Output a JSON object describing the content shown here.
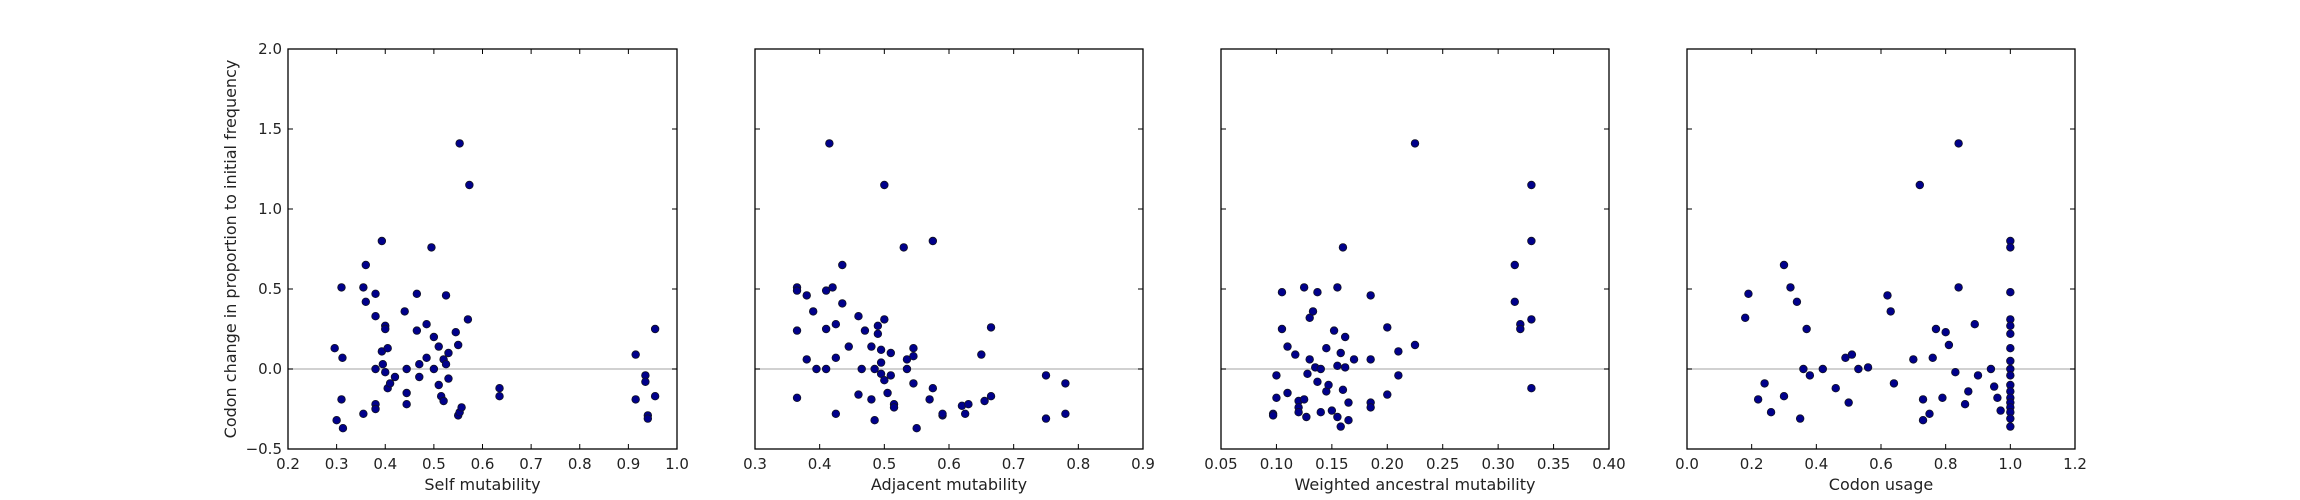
{
  "colors": {
    "marker": "#00008b",
    "zero_line": "#c2c2c2",
    "frame": "#000000",
    "background": "#ffffff"
  },
  "chart_data": [
    {
      "type": "scatter",
      "xlabel": "Self mutability",
      "ylabel": "Codon change in proportion to initial frequency",
      "xlim": [
        0.2,
        1.0
      ],
      "ylim": [
        -0.5,
        2.0
      ],
      "xticks": [
        "0.2",
        "0.3",
        "0.4",
        "0.5",
        "0.6",
        "0.7",
        "0.8",
        "0.9",
        "1.0"
      ],
      "yticks": [
        "−0.5",
        "0.0",
        "0.5",
        "1.0",
        "1.5",
        "2.0"
      ],
      "grid": false,
      "reference_line_y": 0.0,
      "points": [
        [
          0.296,
          0.13
        ],
        [
          0.31,
          0.51
        ],
        [
          0.312,
          0.07
        ],
        [
          0.31,
          -0.19
        ],
        [
          0.3,
          -0.32
        ],
        [
          0.313,
          -0.37
        ],
        [
          0.355,
          0.51
        ],
        [
          0.36,
          0.65
        ],
        [
          0.36,
          0.42
        ],
        [
          0.355,
          -0.28
        ],
        [
          0.38,
          0.47
        ],
        [
          0.38,
          0.33
        ],
        [
          0.38,
          0.0
        ],
        [
          0.38,
          -0.22
        ],
        [
          0.38,
          -0.25
        ],
        [
          0.393,
          0.8
        ],
        [
          0.393,
          0.11
        ],
        [
          0.395,
          0.03
        ],
        [
          0.4,
          0.27
        ],
        [
          0.4,
          0.25
        ],
        [
          0.4,
          -0.02
        ],
        [
          0.405,
          0.13
        ],
        [
          0.405,
          -0.12
        ],
        [
          0.41,
          -0.09
        ],
        [
          0.42,
          -0.05
        ],
        [
          0.44,
          0.36
        ],
        [
          0.444,
          0.0
        ],
        [
          0.444,
          -0.15
        ],
        [
          0.444,
          -0.22
        ],
        [
          0.465,
          0.47
        ],
        [
          0.465,
          0.24
        ],
        [
          0.47,
          0.03
        ],
        [
          0.47,
          -0.05
        ],
        [
          0.485,
          0.28
        ],
        [
          0.485,
          0.07
        ],
        [
          0.495,
          0.76
        ],
        [
          0.5,
          0.2
        ],
        [
          0.5,
          0.0
        ],
        [
          0.51,
          0.14
        ],
        [
          0.51,
          -0.1
        ],
        [
          0.515,
          -0.17
        ],
        [
          0.52,
          -0.2
        ],
        [
          0.52,
          0.06
        ],
        [
          0.525,
          0.46
        ],
        [
          0.525,
          0.03
        ],
        [
          0.53,
          -0.06
        ],
        [
          0.53,
          0.1
        ],
        [
          0.545,
          0.23
        ],
        [
          0.55,
          0.15
        ],
        [
          0.55,
          -0.29
        ],
        [
          0.553,
          -0.27
        ],
        [
          0.557,
          -0.24
        ],
        [
          0.553,
          1.41
        ],
        [
          0.573,
          1.15
        ],
        [
          0.57,
          0.31
        ],
        [
          0.635,
          -0.12
        ],
        [
          0.635,
          -0.17
        ],
        [
          0.915,
          0.09
        ],
        [
          0.915,
          -0.19
        ],
        [
          0.935,
          -0.04
        ],
        [
          0.935,
          -0.08
        ],
        [
          0.94,
          -0.29
        ],
        [
          0.94,
          -0.31
        ],
        [
          0.955,
          0.25
        ],
        [
          0.955,
          -0.17
        ]
      ]
    },
    {
      "type": "scatter",
      "xlabel": "Adjacent mutability",
      "ylabel": "",
      "xlim": [
        0.3,
        0.9
      ],
      "ylim": [
        -0.5,
        2.0
      ],
      "xticks": [
        "0.3",
        "0.4",
        "0.5",
        "0.6",
        "0.7",
        "0.8",
        "0.9"
      ],
      "yticks": [],
      "grid": false,
      "reference_line_y": 0.0,
      "points": [
        [
          0.365,
          0.51
        ],
        [
          0.365,
          0.49
        ],
        [
          0.365,
          0.24
        ],
        [
          0.365,
          -0.18
        ],
        [
          0.38,
          0.46
        ],
        [
          0.38,
          0.06
        ],
        [
          0.39,
          0.36
        ],
        [
          0.395,
          0.0
        ],
        [
          0.41,
          0.49
        ],
        [
          0.41,
          0.25
        ],
        [
          0.41,
          0.0
        ],
        [
          0.415,
          1.41
        ],
        [
          0.42,
          0.51
        ],
        [
          0.425,
          0.28
        ],
        [
          0.425,
          0.07
        ],
        [
          0.425,
          -0.28
        ],
        [
          0.435,
          0.65
        ],
        [
          0.435,
          0.41
        ],
        [
          0.445,
          0.14
        ],
        [
          0.46,
          0.33
        ],
        [
          0.46,
          -0.16
        ],
        [
          0.465,
          0.0
        ],
        [
          0.47,
          0.24
        ],
        [
          0.48,
          0.14
        ],
        [
          0.48,
          -0.19
        ],
        [
          0.485,
          0.0
        ],
        [
          0.485,
          -0.32
        ],
        [
          0.49,
          0.27
        ],
        [
          0.49,
          0.22
        ],
        [
          0.495,
          0.12
        ],
        [
          0.495,
          0.04
        ],
        [
          0.495,
          -0.03
        ],
        [
          0.5,
          1.15
        ],
        [
          0.5,
          0.31
        ],
        [
          0.5,
          -0.07
        ],
        [
          0.505,
          -0.15
        ],
        [
          0.51,
          0.1
        ],
        [
          0.51,
          -0.04
        ],
        [
          0.515,
          -0.22
        ],
        [
          0.515,
          -0.24
        ],
        [
          0.53,
          0.76
        ],
        [
          0.535,
          0.06
        ],
        [
          0.535,
          0.0
        ],
        [
          0.545,
          0.13
        ],
        [
          0.545,
          0.08
        ],
        [
          0.545,
          -0.09
        ],
        [
          0.55,
          -0.37
        ],
        [
          0.57,
          -0.19
        ],
        [
          0.575,
          0.8
        ],
        [
          0.575,
          -0.12
        ],
        [
          0.59,
          -0.29
        ],
        [
          0.59,
          -0.28
        ],
        [
          0.62,
          -0.23
        ],
        [
          0.625,
          -0.28
        ],
        [
          0.63,
          -0.22
        ],
        [
          0.65,
          0.09
        ],
        [
          0.655,
          -0.2
        ],
        [
          0.665,
          0.26
        ],
        [
          0.665,
          -0.17
        ],
        [
          0.75,
          -0.04
        ],
        [
          0.75,
          -0.31
        ],
        [
          0.78,
          -0.09
        ],
        [
          0.78,
          -0.28
        ]
      ]
    },
    {
      "type": "scatter",
      "xlabel": "Weighted ancestral mutability",
      "ylabel": "",
      "xlim": [
        0.05,
        0.4
      ],
      "ylim": [
        -0.5,
        2.0
      ],
      "xticks": [
        "0.05",
        "0.10",
        "0.15",
        "0.20",
        "0.25",
        "0.30",
        "0.35",
        "0.40"
      ],
      "yticks": [],
      "grid": false,
      "reference_line_y": 0.0,
      "points": [
        [
          0.097,
          -0.28
        ],
        [
          0.097,
          -0.29
        ],
        [
          0.1,
          -0.04
        ],
        [
          0.1,
          -0.18
        ],
        [
          0.105,
          0.48
        ],
        [
          0.105,
          0.25
        ],
        [
          0.11,
          0.14
        ],
        [
          0.11,
          -0.15
        ],
        [
          0.117,
          0.09
        ],
        [
          0.12,
          -0.2
        ],
        [
          0.12,
          -0.24
        ],
        [
          0.12,
          -0.27
        ],
        [
          0.125,
          0.51
        ],
        [
          0.125,
          -0.19
        ],
        [
          0.127,
          -0.3
        ],
        [
          0.128,
          -0.03
        ],
        [
          0.13,
          0.32
        ],
        [
          0.13,
          0.06
        ],
        [
          0.133,
          0.36
        ],
        [
          0.135,
          0.01
        ],
        [
          0.137,
          0.48
        ],
        [
          0.137,
          -0.08
        ],
        [
          0.14,
          0.0
        ],
        [
          0.14,
          -0.27
        ],
        [
          0.145,
          0.13
        ],
        [
          0.145,
          -0.14
        ],
        [
          0.147,
          -0.1
        ],
        [
          0.15,
          -0.26
        ],
        [
          0.152,
          0.24
        ],
        [
          0.155,
          0.51
        ],
        [
          0.155,
          0.02
        ],
        [
          0.155,
          -0.3
        ],
        [
          0.158,
          0.1
        ],
        [
          0.158,
          -0.36
        ],
        [
          0.16,
          0.76
        ],
        [
          0.16,
          -0.13
        ],
        [
          0.162,
          0.2
        ],
        [
          0.162,
          0.01
        ],
        [
          0.165,
          -0.21
        ],
        [
          0.165,
          -0.32
        ],
        [
          0.17,
          0.06
        ],
        [
          0.185,
          0.46
        ],
        [
          0.185,
          0.06
        ],
        [
          0.185,
          -0.21
        ],
        [
          0.185,
          -0.24
        ],
        [
          0.2,
          0.26
        ],
        [
          0.2,
          -0.16
        ],
        [
          0.21,
          0.11
        ],
        [
          0.21,
          -0.04
        ],
        [
          0.225,
          0.15
        ],
        [
          0.225,
          1.41
        ],
        [
          0.315,
          0.65
        ],
        [
          0.315,
          0.42
        ],
        [
          0.32,
          0.28
        ],
        [
          0.32,
          0.25
        ],
        [
          0.33,
          1.15
        ],
        [
          0.33,
          0.8
        ],
        [
          0.33,
          0.31
        ],
        [
          0.33,
          -0.12
        ]
      ]
    },
    {
      "type": "scatter",
      "xlabel": "Codon usage",
      "ylabel": "",
      "xlim": [
        0.0,
        1.2
      ],
      "ylim": [
        -0.5,
        2.0
      ],
      "xticks": [
        "0.0",
        "0.2",
        "0.4",
        "0.6",
        "0.8",
        "1.0",
        "1.2"
      ],
      "yticks": [],
      "grid": false,
      "reference_line_y": 0.0,
      "points": [
        [
          0.18,
          0.32
        ],
        [
          0.19,
          0.47
        ],
        [
          0.22,
          -0.19
        ],
        [
          0.24,
          -0.09
        ],
        [
          0.26,
          -0.27
        ],
        [
          0.3,
          0.65
        ],
        [
          0.3,
          -0.17
        ],
        [
          0.32,
          0.51
        ],
        [
          0.34,
          0.42
        ],
        [
          0.35,
          -0.31
        ],
        [
          0.36,
          0.0
        ],
        [
          0.37,
          0.25
        ],
        [
          0.38,
          -0.04
        ],
        [
          0.42,
          0.0
        ],
        [
          0.46,
          -0.12
        ],
        [
          0.49,
          0.07
        ],
        [
          0.5,
          -0.21
        ],
        [
          0.51,
          0.09
        ],
        [
          0.53,
          0.0
        ],
        [
          0.56,
          0.01
        ],
        [
          0.62,
          0.46
        ],
        [
          0.63,
          0.36
        ],
        [
          0.64,
          -0.09
        ],
        [
          0.7,
          0.06
        ],
        [
          0.72,
          1.15
        ],
        [
          0.73,
          -0.19
        ],
        [
          0.73,
          -0.32
        ],
        [
          0.75,
          -0.28
        ],
        [
          0.76,
          0.07
        ],
        [
          0.77,
          0.25
        ],
        [
          0.79,
          -0.18
        ],
        [
          0.8,
          0.23
        ],
        [
          0.81,
          0.15
        ],
        [
          0.83,
          -0.02
        ],
        [
          0.84,
          0.51
        ],
        [
          0.84,
          1.41
        ],
        [
          0.86,
          -0.22
        ],
        [
          0.87,
          -0.14
        ],
        [
          0.89,
          0.28
        ],
        [
          0.9,
          -0.04
        ],
        [
          0.94,
          0.0
        ],
        [
          0.95,
          -0.11
        ],
        [
          0.96,
          -0.18
        ],
        [
          0.97,
          -0.26
        ],
        [
          1.0,
          0.8
        ],
        [
          1.0,
          0.76
        ],
        [
          1.0,
          0.48
        ],
        [
          1.0,
          0.31
        ],
        [
          1.0,
          0.27
        ],
        [
          1.0,
          0.22
        ],
        [
          1.0,
          0.13
        ],
        [
          1.0,
          0.05
        ],
        [
          1.0,
          0.0
        ],
        [
          1.0,
          -0.04
        ],
        [
          1.0,
          -0.1
        ],
        [
          1.0,
          -0.14
        ],
        [
          1.0,
          -0.18
        ],
        [
          1.0,
          -0.21
        ],
        [
          1.0,
          -0.24
        ],
        [
          1.0,
          -0.27
        ],
        [
          1.0,
          -0.31
        ],
        [
          1.0,
          -0.36
        ]
      ]
    }
  ]
}
